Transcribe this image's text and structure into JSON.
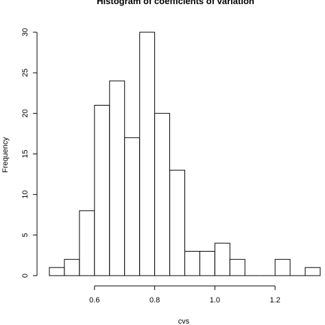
{
  "chart_data": {
    "type": "bar",
    "title": "Histogram of coefficients of variation",
    "xlabel": "cvs",
    "ylabel": "Frequency",
    "bin_width": 0.05,
    "bins": [
      {
        "start": 0.45,
        "end": 0.5,
        "count": 1
      },
      {
        "start": 0.5,
        "end": 0.55,
        "count": 2
      },
      {
        "start": 0.55,
        "end": 0.6,
        "count": 8
      },
      {
        "start": 0.6,
        "end": 0.65,
        "count": 21
      },
      {
        "start": 0.65,
        "end": 0.7,
        "count": 24
      },
      {
        "start": 0.7,
        "end": 0.75,
        "count": 17
      },
      {
        "start": 0.75,
        "end": 0.8,
        "count": 30
      },
      {
        "start": 0.8,
        "end": 0.85,
        "count": 20
      },
      {
        "start": 0.85,
        "end": 0.9,
        "count": 13
      },
      {
        "start": 0.9,
        "end": 0.95,
        "count": 3
      },
      {
        "start": 0.95,
        "end": 1.0,
        "count": 3
      },
      {
        "start": 1.0,
        "end": 1.05,
        "count": 4
      },
      {
        "start": 1.05,
        "end": 1.1,
        "count": 2
      },
      {
        "start": 1.1,
        "end": 1.15,
        "count": 0
      },
      {
        "start": 1.15,
        "end": 1.2,
        "count": 0
      },
      {
        "start": 1.2,
        "end": 1.25,
        "count": 2
      },
      {
        "start": 1.25,
        "end": 1.3,
        "count": 0
      },
      {
        "start": 1.3,
        "end": 1.35,
        "count": 1
      }
    ],
    "x_ticks": [
      0.6,
      0.8,
      1.0,
      1.2
    ],
    "x_tick_labels": [
      "0.6",
      "0.8",
      "1.0",
      "1.2"
    ],
    "y_ticks": [
      0,
      5,
      10,
      15,
      20,
      25,
      30
    ],
    "y_tick_labels": [
      "0",
      "5",
      "10",
      "15",
      "20",
      "25",
      "30"
    ],
    "xlim": [
      0.45,
      1.35
    ],
    "ylim": [
      0,
      30
    ],
    "grid": false,
    "bar_fill": "#ffffff",
    "bar_stroke": "#000000"
  }
}
